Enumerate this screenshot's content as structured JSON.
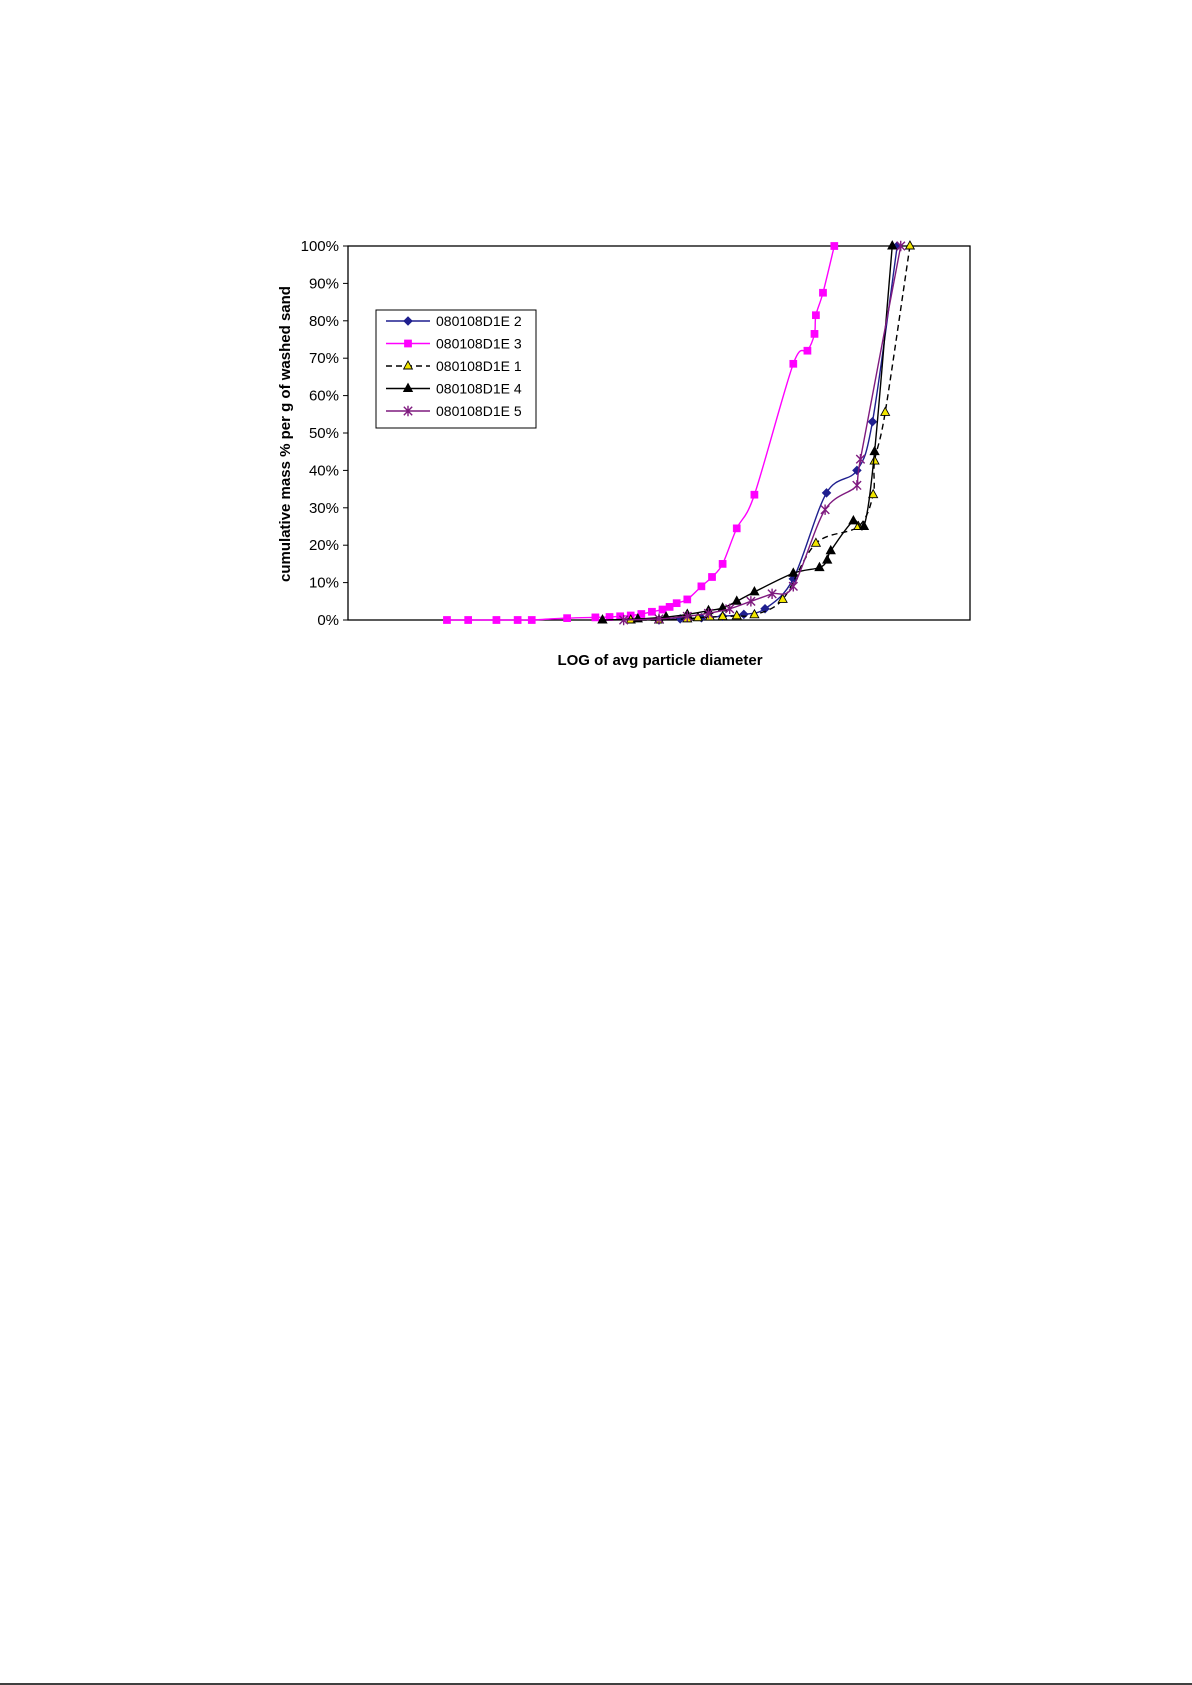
{
  "chart_data": {
    "type": "line",
    "title": "",
    "xlabel": "LOG of avg particle diameter",
    "ylabel": "cumulative mass % per g of washed sand",
    "xlim": [
      -6,
      2.8
    ],
    "ylim": [
      0,
      100
    ],
    "y_ticks": [
      "0%",
      "10%",
      "20%",
      "30%",
      "40%",
      "50%",
      "60%",
      "70%",
      "80%",
      "90%",
      "100%"
    ],
    "x_tick_labels_shown": false,
    "grid": false,
    "legend_position": "upper-left",
    "series": [
      {
        "name": "080108D1E 2",
        "color": "#1F1F8F",
        "marker": "diamond",
        "dash": false,
        "points": [
          [
            -1.6,
            0
          ],
          [
            -1.3,
            0.3
          ],
          [
            -1.0,
            0.6
          ],
          [
            -0.7,
            1
          ],
          [
            -0.4,
            1.5
          ],
          [
            -0.1,
            3
          ],
          [
            0.3,
            11
          ],
          [
            0.77,
            34
          ],
          [
            1.2,
            40
          ],
          [
            1.42,
            53
          ],
          [
            1.77,
            100
          ]
        ]
      },
      {
        "name": "080108D1E 3",
        "color": "#FF00FF",
        "marker": "square",
        "dash": false,
        "points": [
          [
            -4.6,
            0
          ],
          [
            -4.3,
            0
          ],
          [
            -3.9,
            0
          ],
          [
            -3.6,
            0
          ],
          [
            -3.4,
            0
          ],
          [
            -2.9,
            0.5
          ],
          [
            -2.5,
            0.7
          ],
          [
            -2.3,
            0.8
          ],
          [
            -2.15,
            1
          ],
          [
            -2.0,
            1.2
          ],
          [
            -1.85,
            1.6
          ],
          [
            -1.7,
            2.2
          ],
          [
            -1.55,
            2.8
          ],
          [
            -1.45,
            3.5
          ],
          [
            -1.35,
            4.5
          ],
          [
            -1.2,
            5.5
          ],
          [
            -1.0,
            9
          ],
          [
            -0.85,
            11.5
          ],
          [
            -0.7,
            15
          ],
          [
            -0.5,
            24.5
          ],
          [
            -0.25,
            33.5
          ],
          [
            0.3,
            68.5
          ],
          [
            0.5,
            72
          ],
          [
            0.6,
            76.5
          ],
          [
            0.62,
            81.5
          ],
          [
            0.72,
            87.5
          ],
          [
            0.88,
            100
          ]
        ]
      },
      {
        "name": "080108D1E 1",
        "color": "#F2E600",
        "marker": "triangle",
        "dash": true,
        "points": [
          [
            -2.0,
            0
          ],
          [
            -1.6,
            0
          ],
          [
            -1.2,
            0.3
          ],
          [
            -1.05,
            0.6
          ],
          [
            -0.88,
            0.8
          ],
          [
            -0.7,
            0.9
          ],
          [
            -0.5,
            1.1
          ],
          [
            -0.25,
            1.4
          ],
          [
            0.15,
            5.5
          ],
          [
            0.62,
            20.5
          ],
          [
            1.22,
            25
          ],
          [
            1.43,
            33.5
          ],
          [
            1.45,
            42.5
          ],
          [
            1.6,
            55.5
          ],
          [
            1.95,
            100
          ]
        ]
      },
      {
        "name": "080108D1E 4",
        "color": "#000000",
        "marker": "triangle",
        "dash": false,
        "points": [
          [
            -2.4,
            0
          ],
          [
            -1.9,
            0.3
          ],
          [
            -1.5,
            0.8
          ],
          [
            -1.2,
            1.5
          ],
          [
            -0.9,
            2.5
          ],
          [
            -0.7,
            3.2
          ],
          [
            -0.5,
            5
          ],
          [
            -0.25,
            7.5
          ],
          [
            0.3,
            12.5
          ],
          [
            0.67,
            14
          ],
          [
            0.78,
            16
          ],
          [
            0.83,
            18.5
          ],
          [
            1.15,
            26.5
          ],
          [
            1.3,
            25
          ],
          [
            1.45,
            45
          ],
          [
            1.7,
            100
          ]
        ]
      },
      {
        "name": "080108D1E 5",
        "color": "#7F1A7F",
        "marker": "star",
        "dash": false,
        "points": [
          [
            -2.1,
            0
          ],
          [
            -1.6,
            0.3
          ],
          [
            -1.2,
            1
          ],
          [
            -0.9,
            1.8
          ],
          [
            -0.6,
            3
          ],
          [
            -0.3,
            5
          ],
          [
            0.0,
            7
          ],
          [
            0.3,
            9
          ],
          [
            0.75,
            29.5
          ],
          [
            1.2,
            36
          ],
          [
            1.25,
            43
          ],
          [
            1.82,
            100
          ]
        ]
      }
    ]
  }
}
